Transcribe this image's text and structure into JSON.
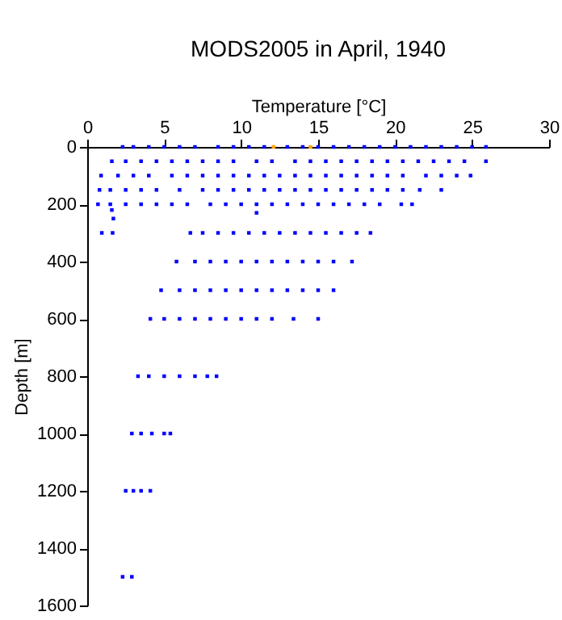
{
  "chart_data": {
    "type": "scatter",
    "title": "MODS2005 in April, 1940",
    "xlabel": "Temperature [°C]",
    "ylabel": "Depth [m]",
    "xlim": [
      0,
      30
    ],
    "xticks": [
      0,
      5,
      10,
      15,
      20,
      25,
      30
    ],
    "ylim": [
      1600,
      0
    ],
    "yticks": [
      0,
      200,
      400,
      600,
      800,
      1000,
      1200,
      1400,
      1600
    ],
    "marker": "square",
    "series": [
      {
        "color": "#0000ff",
        "x": [
          2.3,
          3,
          4,
          5,
          6,
          7,
          8.5,
          9.5,
          10.5,
          11.5,
          13,
          14,
          15,
          16,
          17,
          18,
          19,
          20,
          21,
          22,
          23,
          24,
          25,
          25.9,
          1.6,
          2.5,
          3.5,
          4.5,
          5.5,
          6.5,
          7.5,
          8.5,
          9.5,
          11,
          12,
          13.5,
          14.5,
          15.5,
          16.5,
          17.5,
          18.5,
          19.5,
          20.5,
          21.5,
          22.5,
          23.5,
          24.5,
          25.9,
          0.9,
          2,
          3,
          4,
          5.5,
          6.5,
          7.5,
          8.5,
          9.5,
          10.5,
          11.5,
          12.5,
          13.5,
          14.5,
          15.5,
          16.5,
          17.5,
          18.5,
          19.5,
          20.5,
          22,
          23,
          24,
          24.9,
          0.8,
          1.5,
          2.5,
          3.5,
          4.5,
          6,
          7.5,
          8.5,
          9.5,
          10.5,
          11.5,
          12.5,
          13.5,
          14.5,
          15.5,
          16.5,
          17.5,
          18.5,
          19.5,
          20.5,
          21.6,
          23,
          0.7,
          1.5,
          2.5,
          3.5,
          4.5,
          5.5,
          6.5,
          8,
          9,
          10,
          11,
          12,
          13,
          14,
          15,
          16,
          17,
          18,
          19,
          20.4,
          21.1,
          1.6,
          11,
          1.7,
          0.95,
          1.65,
          6.7,
          7.5,
          8.5,
          9.5,
          10.5,
          11.5,
          12.5,
          13.5,
          14.5,
          15.5,
          16.5,
          17.5,
          18.4,
          5.8,
          7,
          8,
          9,
          10,
          11,
          12,
          13,
          14,
          15,
          16,
          17.2,
          4.8,
          6,
          7,
          8,
          9,
          10,
          11,
          12,
          13,
          14,
          15,
          16,
          4.1,
          5,
          6,
          7,
          8,
          9,
          10,
          11,
          12,
          13.4,
          15,
          3.3,
          4,
          5,
          6,
          7,
          7.8,
          8.4,
          2.9,
          3.5,
          4.2,
          5,
          5.4,
          2.5,
          3,
          3.5,
          4.1,
          2.3,
          2.9
        ],
        "values": [
          0,
          0,
          0,
          0,
          0,
          0,
          0,
          0,
          0,
          0,
          0,
          0,
          0,
          0,
          0,
          0,
          0,
          0,
          0,
          0,
          0,
          0,
          0,
          0,
          50,
          50,
          50,
          50,
          50,
          50,
          50,
          50,
          50,
          50,
          50,
          50,
          50,
          50,
          50,
          50,
          50,
          50,
          50,
          50,
          50,
          50,
          50,
          50,
          100,
          100,
          100,
          100,
          100,
          100,
          100,
          100,
          100,
          100,
          100,
          100,
          100,
          100,
          100,
          100,
          100,
          100,
          100,
          100,
          100,
          100,
          100,
          100,
          150,
          150,
          150,
          150,
          150,
          150,
          150,
          150,
          150,
          150,
          150,
          150,
          150,
          150,
          150,
          150,
          150,
          150,
          150,
          150,
          150,
          150,
          200,
          200,
          200,
          200,
          200,
          200,
          200,
          200,
          200,
          200,
          200,
          200,
          200,
          200,
          200,
          200,
          200,
          200,
          200,
          200,
          200,
          220,
          230,
          250,
          300,
          300,
          300,
          300,
          300,
          300,
          300,
          300,
          300,
          300,
          300,
          300,
          300,
          300,
          300,
          400,
          400,
          400,
          400,
          400,
          400,
          400,
          400,
          400,
          400,
          400,
          400,
          500,
          500,
          500,
          500,
          500,
          500,
          500,
          500,
          500,
          500,
          500,
          500,
          600,
          600,
          600,
          600,
          600,
          600,
          600,
          600,
          600,
          600,
          600,
          800,
          800,
          800,
          800,
          800,
          800,
          800,
          1000,
          1000,
          1000,
          1000,
          1000,
          1200,
          1200,
          1200,
          1200,
          1500,
          1500
        ]
      },
      {
        "color": "#ffa500",
        "x": [
          12.1,
          14.5
        ],
        "values": [
          0,
          0
        ]
      }
    ]
  }
}
